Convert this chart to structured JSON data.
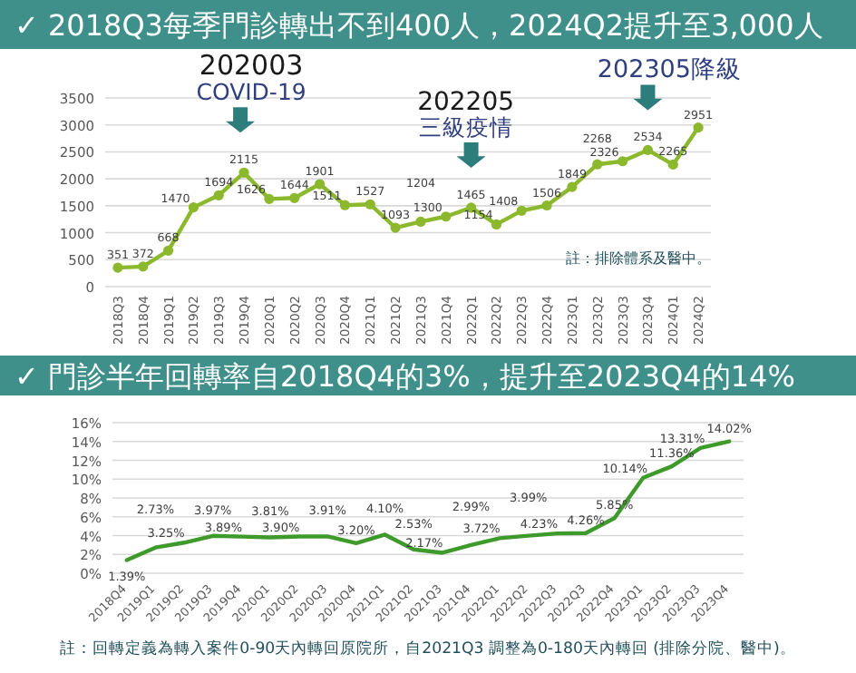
{
  "chart_data": [
    {
      "type": "line",
      "title": "✓ 2018Q3每季門診轉出不到400人，2024Q2提升至3,000人",
      "categories": [
        "2018Q3",
        "2018Q4",
        "2019Q1",
        "2019Q2",
        "2019Q3",
        "2019Q4",
        "2020Q1",
        "2020Q2",
        "2020Q3",
        "2020Q4",
        "2021Q1",
        "2021Q2",
        "2021Q3",
        "2021Q4",
        "2022Q1",
        "2022Q2",
        "2022Q3",
        "2022Q4",
        "2023Q1",
        "2023Q2",
        "2023Q3",
        "2023Q4",
        "2024Q1",
        "2024Q2"
      ],
      "values": [
        351,
        372,
        668,
        1470,
        1694,
        2115,
        1626,
        1644,
        1901,
        1511,
        1527,
        1093,
        1204,
        1300,
        1465,
        1154,
        1408,
        1506,
        1849,
        2268,
        2326,
        2534,
        2265,
        2951
      ],
      "color": "#8cb82e",
      "marker": "circle",
      "data_labels": true,
      "grid": "y",
      "ylim": [
        0,
        3500
      ],
      "yticks": [
        0,
        500,
        1000,
        1500,
        2000,
        2500,
        3000,
        3500
      ],
      "annotations": [
        {
          "text": "202003\nCOVID-19",
          "x": "2019Q4",
          "y": 2115
        },
        {
          "text": "202205\n三級疫情",
          "x": "2022Q1",
          "y": 1465
        },
        {
          "text": "202305降級",
          "x": "2023Q4",
          "y": 2534
        },
        "註：排除體系及醫中。"
      ]
    },
    {
      "type": "line",
      "title": "✓ 門診半年回轉率自2018Q4的3%，提升至2023Q4的14%",
      "categories": [
        "2018Q4",
        "2019Q1",
        "2019Q2",
        "2019Q3",
        "2019Q4",
        "2020Q1",
        "2020Q2",
        "2020Q3",
        "2020Q4",
        "2021Q1",
        "2021Q2",
        "2021Q3",
        "2021Q4",
        "2022Q1",
        "2022Q2",
        "2022Q3",
        "2022Q3",
        "2022Q4",
        "2023Q1",
        "2023Q2",
        "2023Q3",
        "2023Q4"
      ],
      "values": [
        1.39,
        2.73,
        3.25,
        3.97,
        3.89,
        3.81,
        3.9,
        3.91,
        3.2,
        4.1,
        2.53,
        2.17,
        2.99,
        3.72,
        3.99,
        4.23,
        4.26,
        5.85,
        10.14,
        11.36,
        13.31,
        14.02
      ],
      "value_labels": [
        "1.39%",
        "2.73%",
        "3.25%",
        "3.97%",
        "3.89%",
        "3.81%",
        "3.90%",
        "3.91%",
        "3.20%",
        "4.10%",
        "2.53%",
        "2.17%",
        "2.99%",
        "3.72%",
        "3.99%",
        "4.23%",
        "4.26%",
        "5.85%",
        "10.14%",
        "11.36%",
        "13.31%",
        "14.02%"
      ],
      "color": "#3f9a2c",
      "grid": "y",
      "ylim": [
        0,
        16
      ],
      "yticks": [
        {
          "value": 0,
          "label": "0%"
        },
        {
          "value": 2,
          "label": "2%"
        },
        {
          "value": 4,
          "label": "4%"
        },
        {
          "value": 6,
          "label": "6%"
        },
        {
          "value": 8,
          "label": "8%"
        },
        {
          "value": 10,
          "label": "10%"
        },
        {
          "value": 12,
          "label": "12%"
        },
        {
          "value": 14,
          "label": "14%"
        },
        {
          "value": 16,
          "label": "16%"
        }
      ],
      "annotations": [
        "註：回轉定義為轉入案件0-90天內轉回原院所，自2021Q3 調整為0-180天內轉回 (排除分院、醫中)。"
      ]
    }
  ]
}
